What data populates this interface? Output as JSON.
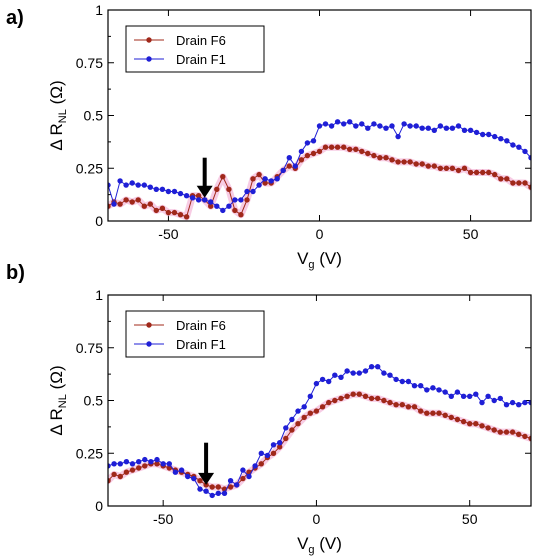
{
  "chart_data": [
    {
      "type": "line",
      "panel_label": "a)",
      "xlabel": "V",
      "xlabel_sub": "g",
      "xlabel_unit": " (V)",
      "ylabel_prefix": "Δ R",
      "ylabel_sub": "NL",
      "ylabel_unit": " (Ω)",
      "xlim": [
        -70,
        70
      ],
      "ylim": [
        0,
        1
      ],
      "xticks": [
        -50,
        0,
        50
      ],
      "xtick_labels": [
        "-50",
        "0",
        "50"
      ],
      "yticks": [
        0,
        0.25,
        0.5,
        0.75,
        1
      ],
      "ytick_labels": [
        "0",
        "0.25",
        "0.5",
        "0.75",
        "1"
      ],
      "grid": false,
      "legend_position": "top-left",
      "arrow_at": {
        "x": -38,
        "y_tip": 0.11,
        "y_tail": 0.3
      },
      "series": [
        {
          "name": "Drain F6",
          "color": "#a0281a",
          "x": [
            -70,
            -68,
            -66,
            -64,
            -62,
            -60,
            -58,
            -56,
            -54,
            -52,
            -50,
            -48,
            -46,
            -44,
            -42,
            -40,
            -38,
            -36,
            -34,
            -32,
            -30,
            -28,
            -26,
            -24,
            -22,
            -20,
            -18,
            -16,
            -14,
            -12,
            -10,
            -8,
            -6,
            -4,
            -2,
            0,
            2,
            4,
            6,
            8,
            10,
            12,
            14,
            16,
            18,
            20,
            22,
            24,
            26,
            28,
            30,
            32,
            34,
            36,
            38,
            40,
            42,
            44,
            46,
            48,
            50,
            52,
            54,
            56,
            58,
            60,
            62,
            64,
            66,
            68,
            70
          ],
          "y": [
            0.07,
            0.09,
            0.08,
            0.1,
            0.09,
            0.1,
            0.07,
            0.08,
            0.05,
            0.06,
            0.04,
            0.04,
            0.03,
            0.02,
            0.12,
            0.12,
            0.1,
            0.07,
            0.15,
            0.21,
            0.15,
            0.05,
            0.03,
            0.1,
            0.2,
            0.22,
            0.18,
            0.18,
            0.21,
            0.24,
            0.26,
            0.25,
            0.29,
            0.31,
            0.32,
            0.33,
            0.35,
            0.35,
            0.35,
            0.35,
            0.34,
            0.34,
            0.33,
            0.32,
            0.31,
            0.3,
            0.3,
            0.29,
            0.28,
            0.28,
            0.28,
            0.27,
            0.27,
            0.26,
            0.26,
            0.25,
            0.25,
            0.25,
            0.24,
            0.25,
            0.23,
            0.23,
            0.23,
            0.23,
            0.22,
            0.2,
            0.2,
            0.18,
            0.18,
            0.18,
            0.16
          ]
        },
        {
          "name": "Drain F1",
          "color": "#1f1fd6",
          "x": [
            -70,
            -68,
            -66,
            -64,
            -62,
            -60,
            -58,
            -56,
            -54,
            -52,
            -50,
            -48,
            -46,
            -44,
            -42,
            -40,
            -38,
            -36,
            -34,
            -32,
            -30,
            -28,
            -26,
            -24,
            -22,
            -20,
            -18,
            -16,
            -14,
            -12,
            -10,
            -8,
            -6,
            -4,
            -2,
            0,
            2,
            4,
            6,
            8,
            10,
            12,
            14,
            16,
            18,
            20,
            22,
            24,
            26,
            28,
            30,
            32,
            34,
            36,
            38,
            40,
            42,
            44,
            46,
            48,
            50,
            52,
            54,
            56,
            58,
            60,
            62,
            64,
            66,
            68,
            70
          ],
          "y": [
            0.17,
            0.08,
            0.19,
            0.17,
            0.18,
            0.17,
            0.17,
            0.16,
            0.15,
            0.15,
            0.14,
            0.14,
            0.13,
            0.12,
            0.11,
            0.1,
            0.1,
            0.09,
            0.07,
            0.05,
            0.07,
            0.1,
            0.1,
            0.14,
            0.14,
            0.17,
            0.2,
            0.19,
            0.2,
            0.24,
            0.3,
            0.26,
            0.33,
            0.37,
            0.38,
            0.45,
            0.46,
            0.45,
            0.47,
            0.46,
            0.47,
            0.45,
            0.46,
            0.44,
            0.46,
            0.45,
            0.44,
            0.45,
            0.4,
            0.46,
            0.45,
            0.45,
            0.44,
            0.44,
            0.43,
            0.45,
            0.44,
            0.44,
            0.45,
            0.43,
            0.43,
            0.42,
            0.41,
            0.41,
            0.4,
            0.39,
            0.38,
            0.36,
            0.35,
            0.33,
            0.3
          ]
        }
      ]
    },
    {
      "type": "line",
      "panel_label": "b)",
      "xlabel": "V",
      "xlabel_sub": "g",
      "xlabel_unit": " (V)",
      "ylabel_prefix": "Δ R",
      "ylabel_sub": "NL",
      "ylabel_unit": " (Ω)",
      "xlim": [
        -68,
        70
      ],
      "ylim": [
        0,
        1
      ],
      "xticks": [
        -50,
        0,
        50
      ],
      "xtick_labels": [
        "-50",
        "0",
        "50"
      ],
      "yticks": [
        0,
        0.25,
        0.5,
        0.75,
        1
      ],
      "ytick_labels": [
        "0",
        "0.25",
        "0.5",
        "0.75",
        "1"
      ],
      "grid": false,
      "legend_position": "top-left",
      "arrow_at": {
        "x": -36,
        "y_tip": 0.1,
        "y_tail": 0.3
      },
      "series": [
        {
          "name": "Drain F6",
          "color": "#a0281a",
          "x": [
            -68,
            -66,
            -64,
            -62,
            -60,
            -58,
            -56,
            -54,
            -52,
            -50,
            -48,
            -46,
            -44,
            -42,
            -40,
            -38,
            -36,
            -34,
            -32,
            -30,
            -28,
            -26,
            -24,
            -22,
            -20,
            -18,
            -16,
            -14,
            -12,
            -10,
            -8,
            -6,
            -4,
            -2,
            0,
            2,
            4,
            6,
            8,
            10,
            12,
            14,
            16,
            18,
            20,
            22,
            24,
            26,
            28,
            30,
            32,
            34,
            36,
            38,
            40,
            42,
            44,
            46,
            48,
            50,
            52,
            54,
            56,
            58,
            60,
            62,
            64,
            66,
            68,
            70
          ],
          "y": [
            0.12,
            0.15,
            0.14,
            0.16,
            0.17,
            0.18,
            0.19,
            0.2,
            0.2,
            0.19,
            0.18,
            0.17,
            0.16,
            0.15,
            0.14,
            0.12,
            0.1,
            0.09,
            0.09,
            0.08,
            0.09,
            0.1,
            0.13,
            0.16,
            0.18,
            0.2,
            0.23,
            0.25,
            0.28,
            0.32,
            0.36,
            0.39,
            0.42,
            0.44,
            0.45,
            0.47,
            0.49,
            0.5,
            0.51,
            0.52,
            0.53,
            0.53,
            0.52,
            0.51,
            0.51,
            0.5,
            0.49,
            0.48,
            0.48,
            0.47,
            0.47,
            0.45,
            0.44,
            0.44,
            0.44,
            0.43,
            0.42,
            0.41,
            0.4,
            0.39,
            0.39,
            0.38,
            0.37,
            0.36,
            0.35,
            0.35,
            0.35,
            0.34,
            0.33,
            0.32
          ]
        },
        {
          "name": "Drain F1",
          "color": "#1f1fd6",
          "x": [
            -68,
            -66,
            -64,
            -62,
            -60,
            -58,
            -56,
            -54,
            -52,
            -50,
            -48,
            -46,
            -44,
            -42,
            -40,
            -38,
            -36,
            -34,
            -32,
            -30,
            -28,
            -26,
            -24,
            -22,
            -20,
            -18,
            -16,
            -14,
            -12,
            -10,
            -8,
            -6,
            -4,
            -2,
            0,
            2,
            4,
            6,
            8,
            10,
            12,
            14,
            16,
            18,
            20,
            22,
            24,
            26,
            28,
            30,
            32,
            34,
            36,
            38,
            40,
            42,
            44,
            46,
            48,
            50,
            52,
            54,
            56,
            58,
            60,
            62,
            64,
            66,
            68,
            70
          ],
          "y": [
            0.19,
            0.2,
            0.2,
            0.21,
            0.2,
            0.21,
            0.22,
            0.21,
            0.22,
            0.2,
            0.2,
            0.16,
            0.17,
            0.14,
            0.13,
            0.08,
            0.07,
            0.05,
            0.06,
            0.06,
            0.12,
            0.1,
            0.17,
            0.14,
            0.19,
            0.25,
            0.24,
            0.29,
            0.3,
            0.37,
            0.41,
            0.45,
            0.47,
            0.52,
            0.58,
            0.6,
            0.59,
            0.62,
            0.61,
            0.64,
            0.63,
            0.63,
            0.64,
            0.66,
            0.66,
            0.63,
            0.62,
            0.6,
            0.59,
            0.59,
            0.57,
            0.57,
            0.55,
            0.56,
            0.55,
            0.54,
            0.52,
            0.54,
            0.52,
            0.52,
            0.53,
            0.49,
            0.52,
            0.5,
            0.51,
            0.48,
            0.49,
            0.48,
            0.49,
            0.49
          ]
        }
      ]
    }
  ]
}
